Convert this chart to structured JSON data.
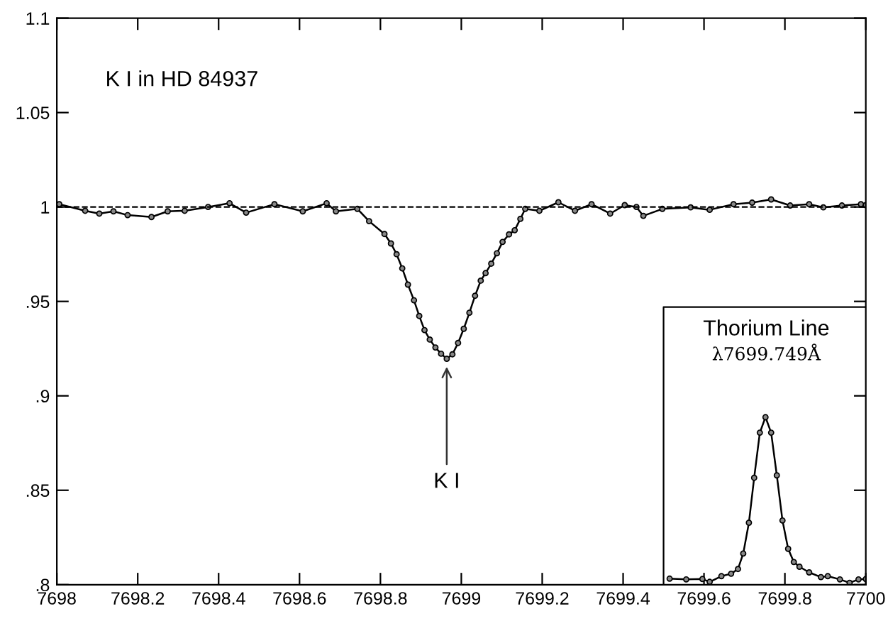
{
  "chart_data": {
    "type": "line",
    "annotations": [
      "K I in HD 84937",
      {
        "text": "K I",
        "x": 7698.964,
        "y": 0.9196
      },
      "Thorium Line",
      "λ7699.749Å"
    ],
    "series": [
      {
        "color": "#000000",
        "x": [
          7698.006,
          7698.07,
          7698.105,
          7698.14,
          7698.175,
          7698.234,
          7698.274,
          7698.316,
          7698.374,
          7698.427,
          7698.468,
          7698.538,
          7698.608,
          7698.667,
          7698.69,
          7698.743,
          7698.772,
          7698.81,
          7698.826,
          7698.84,
          7698.854,
          7698.868,
          7698.883,
          7698.896,
          7698.909,
          7698.922,
          7698.936,
          7698.95,
          7698.964,
          7698.978,
          7698.992,
          7699.006,
          7699.02,
          7699.034,
          7699.048,
          7699.06,
          7699.074,
          7699.088,
          7699.102,
          7699.118,
          7699.132,
          7699.146,
          7699.158,
          7699.193,
          7699.24,
          7699.281,
          7699.322,
          7699.368,
          7699.404,
          7699.433,
          7699.45,
          7699.497,
          7699.567,
          7699.614,
          7699.673,
          7699.719,
          7699.766,
          7699.813,
          7699.86,
          7699.895,
          7699.941,
          7699.988,
          7700.0
        ],
        "values": [
          1.0015,
          0.998,
          0.9965,
          0.9977,
          0.9957,
          0.9947,
          0.9977,
          0.998,
          1.0,
          1.002,
          0.997,
          1.0015,
          0.9977,
          1.002,
          0.9977,
          0.999,
          0.9925,
          0.9857,
          0.9807,
          0.975,
          0.9675,
          0.9589,
          0.9506,
          0.9423,
          0.9348,
          0.9298,
          0.9256,
          0.9223,
          0.9196,
          0.922,
          0.928,
          0.9355,
          0.944,
          0.953,
          0.961,
          0.965,
          0.97,
          0.9755,
          0.9815,
          0.9855,
          0.9877,
          0.9937,
          0.999,
          0.998,
          1.0025,
          0.998,
          1.0015,
          0.9965,
          1.001,
          1.0,
          0.9953,
          0.999,
          0.9998,
          0.9985,
          1.0015,
          1.0023,
          1.004,
          1.0008,
          1.0015,
          0.9998,
          1.0008,
          1.0015,
          1.001
        ]
      },
      {
        "color": "#000000",
        "x": [
          7699.515,
          7699.556,
          7699.596,
          7699.614,
          7699.643,
          7699.667,
          7699.684,
          7699.697,
          7699.711,
          7699.724,
          7699.738,
          7699.752,
          7699.766,
          7699.78,
          7699.794,
          7699.808,
          7699.822,
          7699.836,
          7699.86,
          7699.889,
          7699.906,
          7699.936,
          7699.96,
          7699.982,
          7700.0
        ],
        "values": [
          0.8032,
          0.8028,
          0.803,
          0.8015,
          0.8045,
          0.8058,
          0.8083,
          0.8165,
          0.8328,
          0.8566,
          0.8805,
          0.8887,
          0.8805,
          0.8579,
          0.834,
          0.819,
          0.812,
          0.8095,
          0.8065,
          0.804,
          0.8045,
          0.8028,
          0.801,
          0.8028,
          0.803
        ]
      }
    ],
    "ref_lines": [
      {
        "axis": "y",
        "value": 1,
        "color": "#000000",
        "line_style": "dashed"
      }
    ],
    "xlim": [
      7698,
      7700
    ],
    "xticks": [
      7698,
      7698.2,
      7698.4,
      7698.6,
      7698.8,
      7699,
      7699.2,
      7699.4,
      7699.6,
      7699.8,
      7700
    ],
    "ylim": [
      0.8,
      1.1
    ],
    "yticks": [
      {
        "value": 0.8,
        "label": ".8"
      },
      {
        "value": 0.85,
        "label": ".85"
      },
      {
        "value": 0.9,
        "label": ".9"
      },
      {
        "value": 0.95,
        "label": ".95"
      },
      1,
      1.05,
      1.1
    ],
    "marker": "circle",
    "line_style": "solid",
    "grid": false,
    "legend": false
  }
}
